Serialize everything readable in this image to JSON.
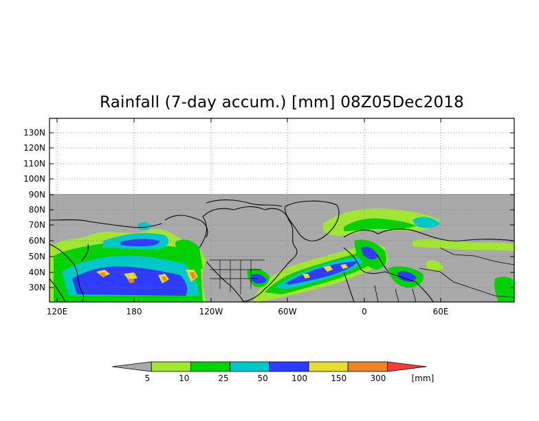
{
  "title": "Rainfall (7-day accum.) [mm] 08Z05Dec2018",
  "map": {
    "lat_labels": [
      "130N",
      "120N",
      "110N",
      "100N",
      "90N",
      "80N",
      "70N",
      "60N",
      "50N",
      "40N",
      "30N"
    ],
    "lon_labels": [
      "120E",
      "180",
      "120W",
      "60W",
      "0",
      "60E"
    ],
    "no_data_color": "#a9a9a9",
    "coastline_color": "#000000"
  },
  "colorbar": {
    "unit": "[mm]",
    "thresholds": [
      "5",
      "10",
      "25",
      "50",
      "100",
      "150",
      "300"
    ],
    "colors": [
      "#a9a9a9",
      "#a0e632",
      "#00d200",
      "#00c8c8",
      "#2d3cff",
      "#e6dc32",
      "#f08228",
      "#fa3c3c"
    ]
  }
}
